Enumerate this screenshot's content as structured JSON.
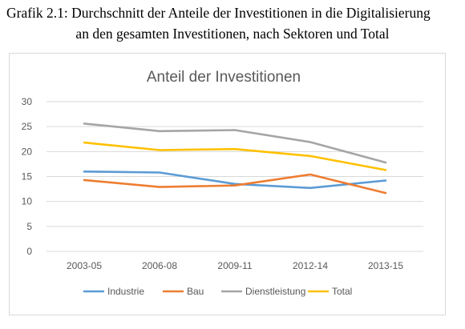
{
  "caption": {
    "line1": "Grafik 2.1: Durchschnitt der Anteile der Investitionen in die Digitalisierung",
    "line2": "an den gesamten Investitionen, nach Sektoren und Total"
  },
  "chart_data": {
    "type": "line",
    "title": "Anteil der Investitionen",
    "xlabel": "",
    "ylabel": "",
    "categories": [
      "2003-05",
      "2006-08",
      "2009-11",
      "2012-14",
      "2013-15"
    ],
    "ylim": [
      0,
      30
    ],
    "yticks": [
      0,
      5,
      10,
      15,
      20,
      25,
      30
    ],
    "grid": true,
    "legend": "bottom",
    "series": [
      {
        "name": "Industrie",
        "color": "#5b9bd5",
        "values": [
          16.0,
          15.8,
          13.5,
          12.7,
          14.2
        ]
      },
      {
        "name": "Bau",
        "color": "#ed7d31",
        "values": [
          14.3,
          12.9,
          13.2,
          15.4,
          11.7
        ]
      },
      {
        "name": "Dienstleistung",
        "color": "#a5a5a5",
        "values": [
          25.6,
          24.1,
          24.3,
          21.9,
          17.8
        ]
      },
      {
        "name": "Total",
        "color": "#ffc000",
        "values": [
          21.8,
          20.3,
          20.5,
          19.1,
          16.3
        ]
      }
    ]
  }
}
